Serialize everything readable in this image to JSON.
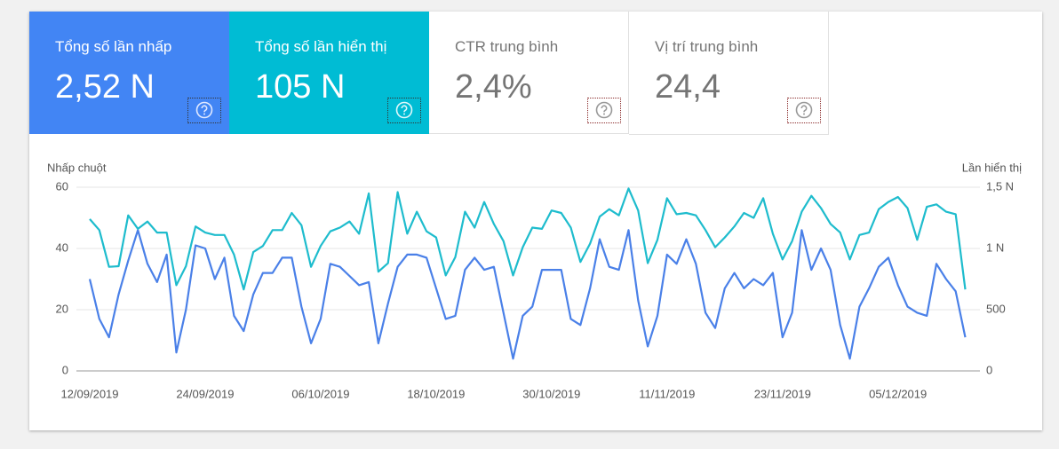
{
  "cards": [
    {
      "title": "Tổng số lần nhấp",
      "value": "2,52 N"
    },
    {
      "title": "Tổng số lần hiển thị",
      "value": "105 N"
    },
    {
      "title": "CTR trung bình",
      "value": "2,4%"
    },
    {
      "title": "Vị trí trung bình",
      "value": "24,4"
    }
  ],
  "chart_data": {
    "type": "line",
    "y_label": "Nhấp chuột",
    "y2_label": "Lần hiển thị",
    "x": [
      "12/09/2019",
      "13/09/2019",
      "14/09/2019",
      "15/09/2019",
      "16/09/2019",
      "17/09/2019",
      "18/09/2019",
      "19/09/2019",
      "20/09/2019",
      "21/09/2019",
      "22/09/2019",
      "23/09/2019",
      "24/09/2019",
      "25/09/2019",
      "26/09/2019",
      "27/09/2019",
      "28/09/2019",
      "29/09/2019",
      "30/09/2019",
      "01/10/2019",
      "02/10/2019",
      "03/10/2019",
      "04/10/2019",
      "05/10/2019",
      "06/10/2019",
      "07/10/2019",
      "08/10/2019",
      "09/10/2019",
      "10/10/2019",
      "11/10/2019",
      "12/10/2019",
      "13/10/2019",
      "14/10/2019",
      "15/10/2019",
      "16/10/2019",
      "17/10/2019",
      "18/10/2019",
      "19/10/2019",
      "20/10/2019",
      "21/10/2019",
      "22/10/2019",
      "23/10/2019",
      "24/10/2019",
      "25/10/2019",
      "26/10/2019",
      "27/10/2019",
      "28/10/2019",
      "29/10/2019",
      "30/10/2019",
      "31/10/2019",
      "01/11/2019",
      "02/11/2019",
      "03/11/2019",
      "04/11/2019",
      "05/11/2019",
      "06/11/2019",
      "07/11/2019",
      "08/11/2019",
      "09/11/2019",
      "10/11/2019",
      "11/11/2019",
      "12/11/2019",
      "13/11/2019",
      "14/11/2019",
      "15/11/2019",
      "16/11/2019",
      "17/11/2019",
      "18/11/2019",
      "19/11/2019",
      "20/11/2019",
      "21/11/2019",
      "22/11/2019",
      "23/11/2019",
      "24/11/2019",
      "25/11/2019",
      "26/11/2019",
      "27/11/2019",
      "28/11/2019",
      "29/11/2019",
      "30/11/2019",
      "01/12/2019",
      "02/12/2019",
      "03/12/2019",
      "04/12/2019",
      "05/12/2019",
      "06/12/2019",
      "07/12/2019",
      "08/12/2019",
      "09/12/2019",
      "10/12/2019",
      "11/12/2019",
      "12/12/2019"
    ],
    "xtick_every": 12,
    "series": [
      {
        "name": "Nhấp chuột",
        "color": "#4a80e8",
        "axis": "y",
        "values": [
          30,
          17,
          11,
          25,
          36,
          46,
          35,
          29,
          38,
          6,
          20,
          41,
          40,
          30,
          37,
          18,
          13,
          25,
          32,
          32,
          37,
          37,
          21,
          9,
          17,
          35,
          34,
          31,
          28,
          29,
          9,
          22,
          34,
          38,
          38,
          37,
          27,
          17,
          18,
          33,
          37,
          33,
          34,
          19,
          4,
          18,
          21,
          33,
          33,
          33,
          17,
          15,
          27,
          43,
          34,
          33,
          46,
          23,
          8,
          18,
          38,
          35,
          43,
          35,
          19,
          14,
          27,
          32,
          27,
          30,
          28,
          32,
          11,
          19,
          46,
          33,
          40,
          33,
          15,
          4,
          21,
          27,
          34,
          37,
          28,
          21,
          19,
          18,
          35,
          30,
          26,
          11
        ]
      },
      {
        "name": "Lần hiển thị",
        "color": "#1ebccd",
        "axis": "y2",
        "values": [
          1240,
          1150,
          850,
          855,
          1270,
          1160,
          1220,
          1130,
          1130,
          700,
          855,
          1180,
          1130,
          1110,
          1110,
          950,
          665,
          970,
          1020,
          1150,
          1150,
          1290,
          1190,
          850,
          1020,
          1140,
          1170,
          1220,
          1120,
          1450,
          810,
          880,
          1460,
          1120,
          1300,
          1140,
          1090,
          780,
          930,
          1300,
          1170,
          1380,
          1200,
          1060,
          780,
          1010,
          1170,
          1160,
          1310,
          1290,
          1170,
          890,
          1040,
          1260,
          1320,
          1270,
          1490,
          1310,
          880,
          1070,
          1410,
          1280,
          1290,
          1270,
          1150,
          1010,
          1090,
          1180,
          1290,
          1250,
          1410,
          1120,
          910,
          1060,
          1300,
          1430,
          1330,
          1200,
          1130,
          910,
          1110,
          1130,
          1320,
          1380,
          1420,
          1330,
          1070,
          1340,
          1360,
          1300,
          1280,
          665
        ]
      }
    ],
    "ylim": [
      0,
      60
    ],
    "yticks": [
      0,
      20,
      40,
      60
    ],
    "y2lim": [
      0,
      1500
    ],
    "y2ticks": [
      0,
      500,
      {
        "value": 1000,
        "label": "1 N"
      },
      {
        "value": 1500,
        "label": "1,5 N"
      }
    ],
    "grid": true
  }
}
